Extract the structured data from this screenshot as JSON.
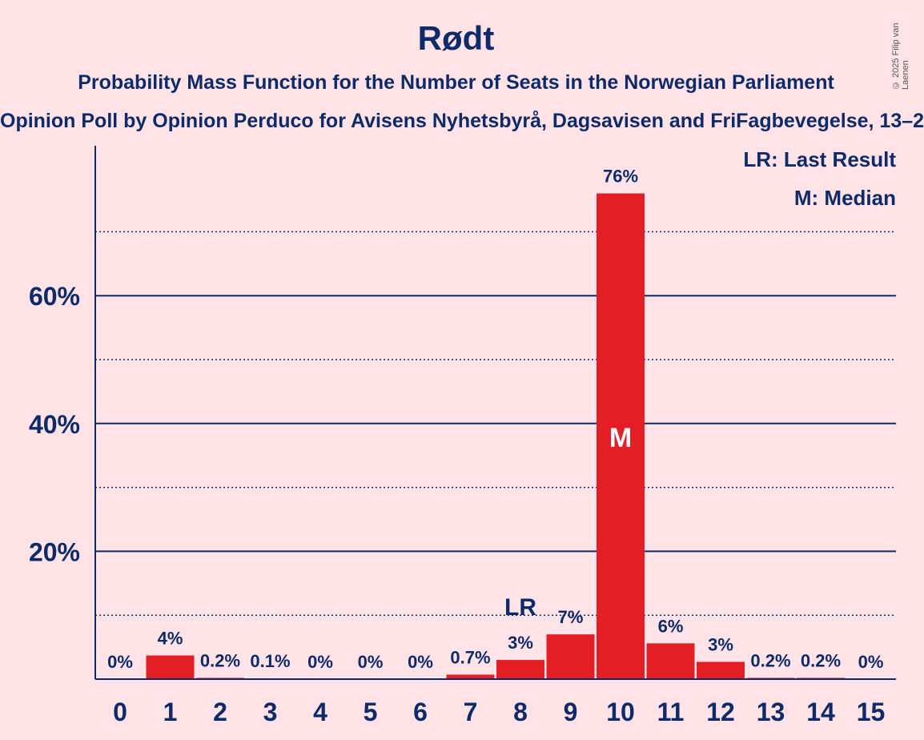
{
  "header": {
    "title": "Rødt",
    "subtitle": "Probability Mass Function for the Number of Seats in the Norwegian Parliament",
    "subsubtitle": "Opinion Poll by Opinion Perduco for Avisens Nyhetsbyrå, Dagsavisen and FriFagbevegelse, 13–2",
    "copyright": "© 2025 Filip van Laenen"
  },
  "legend": {
    "lr": "LR: Last Result",
    "m": "M: Median"
  },
  "chart_data": {
    "type": "bar",
    "categories": [
      "0",
      "1",
      "2",
      "3",
      "4",
      "5",
      "6",
      "7",
      "8",
      "9",
      "10",
      "11",
      "12",
      "13",
      "14",
      "15"
    ],
    "values": [
      0,
      3.7,
      0.2,
      0.1,
      0,
      0,
      0,
      0.7,
      3,
      7,
      76,
      5.6,
      2.7,
      0.2,
      0.2,
      0
    ],
    "data_labels": [
      "0%",
      "4%",
      "0.2%",
      "0.1%",
      "0%",
      "0%",
      "0%",
      "0.7%",
      "3%",
      "7%",
      "76%",
      "6%",
      "3%",
      "0.2%",
      "0.2%",
      "0%"
    ],
    "ylim": [
      0,
      83
    ],
    "yticks": [
      20,
      40,
      60
    ],
    "ytick_labels": [
      "20%",
      "40%",
      "60%"
    ],
    "minor_gridlines": [
      10,
      30,
      50,
      70
    ],
    "last_result": {
      "index": 8,
      "label": "LR"
    },
    "median": {
      "index": 10,
      "label": "M"
    },
    "bar_color": "#E31E24",
    "axis_color": "#0D2A6B",
    "background": "#FFE3E6"
  }
}
